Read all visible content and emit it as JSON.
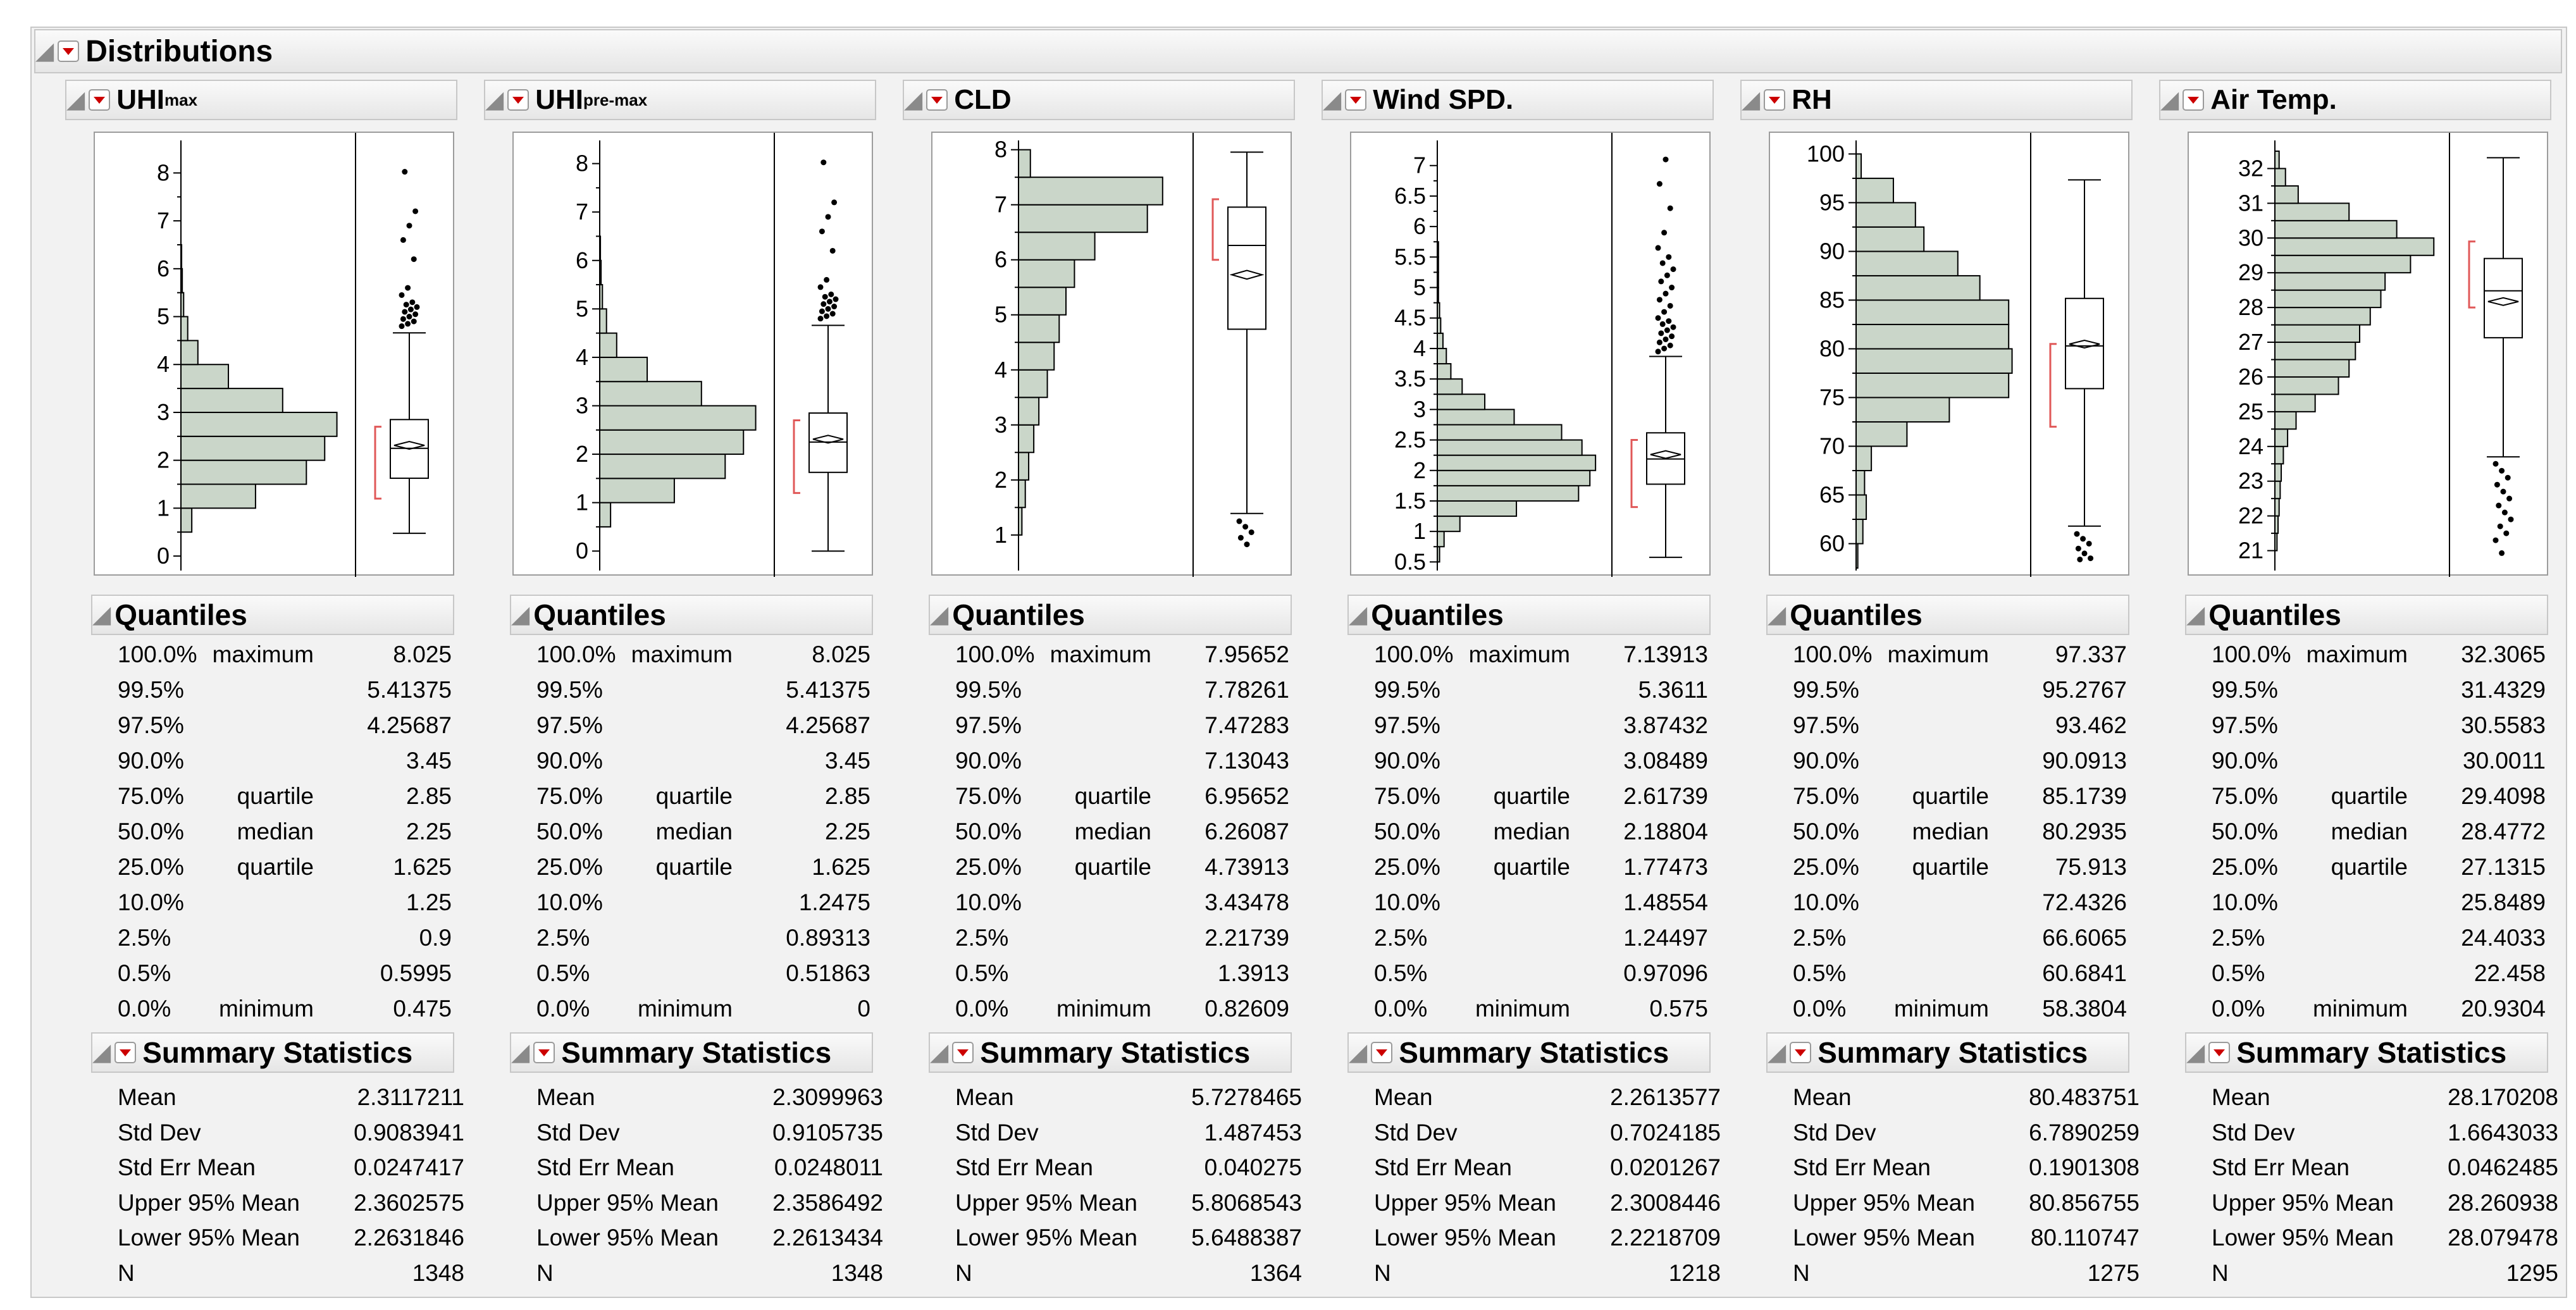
{
  "title": "Distributions",
  "colors": {
    "bar_fill": "#cad6c9",
    "bar_stroke": "#000000",
    "bracket": "#e05858",
    "menu_arrow": "#cc0000"
  },
  "icons": {
    "disclosure": "disclosure-triangle-icon",
    "menu": "red-menu-arrow-icon"
  },
  "labels": {
    "quantiles": "Quantiles",
    "summary": "Summary Statistics",
    "stat_names": [
      "Mean",
      "Std Dev",
      "Std Err Mean",
      "Upper 95% Mean",
      "Lower 95% Mean",
      "N"
    ],
    "quantile_pcts": [
      "100.0%",
      "99.5%",
      "97.5%",
      "90.0%",
      "75.0%",
      "50.0%",
      "25.0%",
      "10.0%",
      "2.5%",
      "0.5%",
      "0.0%"
    ],
    "quantile_names": [
      "maximum",
      "",
      "",
      "",
      "quartile",
      "median",
      "quartile",
      "",
      "",
      "",
      "minimum"
    ]
  },
  "variables": [
    {
      "name": "UHI",
      "sub": "max",
      "quantile_values": [
        "8.025",
        "5.41375",
        "4.25687",
        "3.45",
        "2.85",
        "2.25",
        "1.625",
        "1.25",
        "0.9",
        "0.5995",
        "0.475"
      ],
      "stats": [
        "2.3117211",
        "0.9083941",
        "0.0247417",
        "2.3602575",
        "2.2631846",
        "1348"
      ],
      "chart_data": {
        "type": "histogram-boxplot",
        "orientation": "horizontal",
        "ylim": [
          -0.25,
          8.6
        ],
        "yticks": [
          "0",
          "1",
          "2",
          "3",
          "4",
          "5",
          "6",
          "7",
          "8"
        ],
        "ytick_values": [
          0,
          1,
          2,
          3,
          4,
          5,
          6,
          7,
          8
        ],
        "bin_width": 0.5,
        "bins": [
          [
            0.5,
            16
          ],
          [
            1.0,
            110
          ],
          [
            1.5,
            185
          ],
          [
            2.0,
            212
          ],
          [
            2.5,
            230
          ],
          [
            3.0,
            150
          ],
          [
            3.5,
            70
          ],
          [
            4.0,
            25
          ],
          [
            4.5,
            10
          ],
          [
            5.0,
            4
          ],
          [
            5.5,
            2
          ],
          [
            6.0,
            1
          ]
        ],
        "max_count": 250,
        "box": {
          "q1": 1.625,
          "median": 2.25,
          "q3": 2.85,
          "whisker_low": 0.475,
          "whisker_high": 4.66,
          "mean": 2.3117,
          "ci_low": 2.263,
          "ci_high": 2.36,
          "shortest_half": [
            1.2,
            2.7
          ]
        },
        "outliers": [
          4.8,
          4.85,
          4.9,
          4.95,
          5.0,
          5.05,
          5.1,
          5.15,
          5.2,
          5.25,
          5.3,
          5.45,
          5.6,
          6.2,
          6.6,
          6.9,
          7.2,
          8.025
        ]
      }
    },
    {
      "name": "UHI",
      "sub": "pre-max",
      "quantile_values": [
        "8.025",
        "5.41375",
        "4.25687",
        "3.45",
        "2.85",
        "2.25",
        "1.625",
        "1.2475",
        "0.89313",
        "0.51863",
        "0"
      ],
      "stats": [
        "2.3099963",
        "0.9105735",
        "0.0248011",
        "2.3586492",
        "2.2613434",
        "1348"
      ],
      "chart_data": {
        "type": "histogram-boxplot",
        "orientation": "horizontal",
        "ylim": [
          -0.35,
          8.4
        ],
        "yticks": [
          "0",
          "1",
          "2",
          "3",
          "4",
          "5",
          "6",
          "7",
          "8"
        ],
        "ytick_values": [
          0,
          1,
          2,
          3,
          4,
          5,
          6,
          7,
          8
        ],
        "bin_width": 0.5,
        "bins": [
          [
            0.5,
            16
          ],
          [
            1.0,
            110
          ],
          [
            1.5,
            185
          ],
          [
            2.0,
            212
          ],
          [
            2.5,
            230
          ],
          [
            3.0,
            150
          ],
          [
            3.5,
            70
          ],
          [
            4.0,
            25
          ],
          [
            4.5,
            10
          ],
          [
            5.0,
            4
          ],
          [
            5.5,
            2
          ],
          [
            6.0,
            1
          ]
        ],
        "max_count": 250,
        "box": {
          "q1": 1.625,
          "median": 2.25,
          "q3": 2.85,
          "whisker_low": 0.0,
          "whisker_high": 4.66,
          "mean": 2.31,
          "ci_low": 2.261,
          "ci_high": 2.359,
          "shortest_half": [
            1.2,
            2.7
          ]
        },
        "outliers": [
          4.8,
          4.85,
          4.9,
          4.95,
          5.0,
          5.05,
          5.1,
          5.15,
          5.2,
          5.25,
          5.3,
          5.45,
          5.6,
          6.2,
          6.6,
          6.9,
          7.2,
          8.025
        ]
      }
    },
    {
      "name": "CLD",
      "sub": "",
      "quantile_values": [
        "7.95652",
        "7.78261",
        "7.47283",
        "7.13043",
        "6.95652",
        "6.26087",
        "4.73913",
        "3.43478",
        "2.21739",
        "1.3913",
        "0.82609"
      ],
      "stats": [
        "5.7278465",
        "1.487453",
        "0.040275",
        "5.8068543",
        "5.6488387",
        "1364"
      ],
      "chart_data": {
        "type": "histogram-boxplot",
        "orientation": "horizontal",
        "ylim": [
          0.4,
          8.1
        ],
        "yticks": [
          "1",
          "2",
          "3",
          "4",
          "5",
          "6",
          "7",
          "8"
        ],
        "ytick_values": [
          1,
          2,
          3,
          4,
          5,
          6,
          7,
          8
        ],
        "bin_width": 0.5,
        "bins": [
          [
            1.0,
            4
          ],
          [
            1.5,
            8
          ],
          [
            2.0,
            12
          ],
          [
            2.5,
            18
          ],
          [
            3.0,
            24
          ],
          [
            3.5,
            34
          ],
          [
            4.0,
            42
          ],
          [
            4.5,
            48
          ],
          [
            5.0,
            56
          ],
          [
            5.5,
            66
          ],
          [
            6.0,
            90
          ],
          [
            6.5,
            152
          ],
          [
            7.0,
            170
          ],
          [
            7.5,
            14
          ]
        ],
        "max_count": 200,
        "box": {
          "q1": 4.739,
          "median": 6.261,
          "q3": 6.957,
          "whisker_low": 1.391,
          "whisker_high": 7.957,
          "mean": 5.728,
          "ci_low": 5.649,
          "ci_high": 5.807,
          "shortest_half": [
            6.0,
            7.1
          ]
        },
        "outliers": [
          1.25,
          1.15,
          1.05,
          0.95,
          0.83
        ]
      }
    },
    {
      "name": "Wind SPD.",
      "sub": "",
      "quantile_values": [
        "7.13913",
        "5.3611",
        "3.87432",
        "3.08489",
        "2.61739",
        "2.18804",
        "1.77473",
        "1.48554",
        "1.24497",
        "0.97096",
        "0.575"
      ],
      "stats": [
        "2.2613577",
        "0.7024185",
        "0.0201267",
        "2.3008446",
        "2.2218709",
        "1218"
      ],
      "chart_data": {
        "type": "histogram-boxplot",
        "orientation": "horizontal",
        "ylim": [
          0.4,
          7.35
        ],
        "yticks": [
          "0.5",
          "1",
          "1.5",
          "2",
          "2.5",
          "3",
          "3.5",
          "4",
          "4.5",
          "5",
          "5.5",
          "6",
          "6.5",
          "7"
        ],
        "ytick_values": [
          0.5,
          1,
          1.5,
          2,
          2.5,
          3,
          3.5,
          4,
          4.5,
          5,
          5.5,
          6,
          6.5,
          7
        ],
        "bin_width": 0.25,
        "bins": [
          [
            0.5,
            2
          ],
          [
            0.75,
            6
          ],
          [
            1.0,
            20
          ],
          [
            1.25,
            70
          ],
          [
            1.5,
            125
          ],
          [
            1.75,
            135
          ],
          [
            2.0,
            140
          ],
          [
            2.25,
            128
          ],
          [
            2.5,
            110
          ],
          [
            2.75,
            68
          ],
          [
            3.0,
            42
          ],
          [
            3.25,
            22
          ],
          [
            3.5,
            12
          ],
          [
            3.75,
            8
          ],
          [
            4.0,
            5
          ],
          [
            4.25,
            3
          ],
          [
            4.5,
            2
          ],
          [
            4.75,
            1
          ],
          [
            5.0,
            1
          ],
          [
            5.25,
            1
          ],
          [
            5.5,
            1
          ]
        ],
        "max_count": 150,
        "box": {
          "q1": 1.775,
          "median": 2.188,
          "q3": 2.617,
          "whisker_low": 0.575,
          "whisker_high": 3.87,
          "mean": 2.261,
          "ci_low": 2.222,
          "ci_high": 2.301,
          "shortest_half": [
            1.4,
            2.5
          ]
        },
        "outliers": [
          3.95,
          4.0,
          4.05,
          4.1,
          4.15,
          4.2,
          4.25,
          4.3,
          4.35,
          4.4,
          4.45,
          4.5,
          4.6,
          4.7,
          4.8,
          4.9,
          5.0,
          5.1,
          5.2,
          5.3,
          5.4,
          5.5,
          5.65,
          5.9,
          6.3,
          6.7,
          7.1
        ]
      }
    },
    {
      "name": "RH",
      "sub": "",
      "quantile_values": [
        "97.337",
        "95.2767",
        "93.462",
        "90.0913",
        "85.1739",
        "80.2935",
        "75.913",
        "72.4326",
        "66.6065",
        "60.6841",
        "58.3804"
      ],
      "stats": [
        "80.483751",
        "6.7890259",
        "0.1901308",
        "80.856755",
        "80.110747",
        "1275"
      ],
      "chart_data": {
        "type": "histogram-boxplot",
        "orientation": "horizontal",
        "ylim": [
          57.5,
          101
        ],
        "yticks": [
          "60",
          "65",
          "70",
          "75",
          "80",
          "85",
          "90",
          "95",
          "100"
        ],
        "ytick_values": [
          60,
          65,
          70,
          75,
          80,
          85,
          90,
          95,
          100
        ],
        "bin_width": 2.5,
        "bins": [
          [
            57.5,
            1
          ],
          [
            60,
            4
          ],
          [
            62.5,
            6
          ],
          [
            65,
            5
          ],
          [
            67.5,
            9
          ],
          [
            70,
            30
          ],
          [
            72.5,
            55
          ],
          [
            75,
            90
          ],
          [
            77.5,
            92
          ],
          [
            80,
            90
          ],
          [
            82.5,
            90
          ],
          [
            85,
            73
          ],
          [
            87.5,
            60
          ],
          [
            90,
            40
          ],
          [
            92.5,
            35
          ],
          [
            95,
            22
          ],
          [
            97.5,
            3
          ]
        ],
        "max_count": 100,
        "box": {
          "q1": 75.913,
          "median": 80.294,
          "q3": 85.174,
          "whisker_low": 61.8,
          "whisker_high": 97.337,
          "mean": 80.484,
          "ci_low": 80.111,
          "ci_high": 80.857,
          "shortest_half": [
            72.0,
            80.5
          ]
        },
        "outliers": [
          61.0,
          60.5,
          60.0,
          59.5,
          59.0,
          58.5,
          58.38
        ]
      }
    },
    {
      "name": "Air Temp.",
      "sub": "",
      "quantile_values": [
        "32.3065",
        "31.4329",
        "30.5583",
        "30.0011",
        "29.4098",
        "28.4772",
        "27.1315",
        "25.8489",
        "24.4033",
        "22.458",
        "20.9304"
      ],
      "stats": [
        "28.170208",
        "1.6643033",
        "0.0462485",
        "28.260938",
        "28.079478",
        "1295"
      ],
      "chart_data": {
        "type": "histogram-boxplot",
        "orientation": "horizontal",
        "ylim": [
          20.5,
          32.7
        ],
        "yticks": [
          "21",
          "22",
          "23",
          "24",
          "25",
          "26",
          "27",
          "28",
          "29",
          "30",
          "31",
          "32"
        ],
        "ytick_values": [
          21,
          22,
          23,
          24,
          25,
          26,
          27,
          28,
          29,
          30,
          31,
          32
        ],
        "bin_width": 0.5,
        "bins": [
          [
            21,
            2
          ],
          [
            21.5,
            3
          ],
          [
            22,
            4
          ],
          [
            22.5,
            5
          ],
          [
            23,
            6
          ],
          [
            23.5,
            8
          ],
          [
            24,
            12
          ],
          [
            24.5,
            20
          ],
          [
            25,
            38
          ],
          [
            25.5,
            60
          ],
          [
            26,
            70
          ],
          [
            26.5,
            76
          ],
          [
            27,
            80
          ],
          [
            27.5,
            90
          ],
          [
            28,
            100
          ],
          [
            28.5,
            104
          ],
          [
            29,
            128
          ],
          [
            29.5,
            150
          ],
          [
            30,
            115
          ],
          [
            30.5,
            70
          ],
          [
            31,
            22
          ],
          [
            31.5,
            10
          ],
          [
            32,
            4
          ]
        ],
        "max_count": 160,
        "box": {
          "q1": 27.13,
          "median": 28.48,
          "q3": 29.41,
          "whisker_low": 23.7,
          "whisker_high": 32.31,
          "mean": 28.17,
          "ci_low": 28.08,
          "ci_high": 28.26,
          "shortest_half": [
            28.0,
            29.9
          ]
        },
        "outliers": [
          23.5,
          23.3,
          23.1,
          22.9,
          22.7,
          22.5,
          22.3,
          22.1,
          21.9,
          21.7,
          21.5,
          21.3,
          20.93
        ]
      }
    }
  ]
}
